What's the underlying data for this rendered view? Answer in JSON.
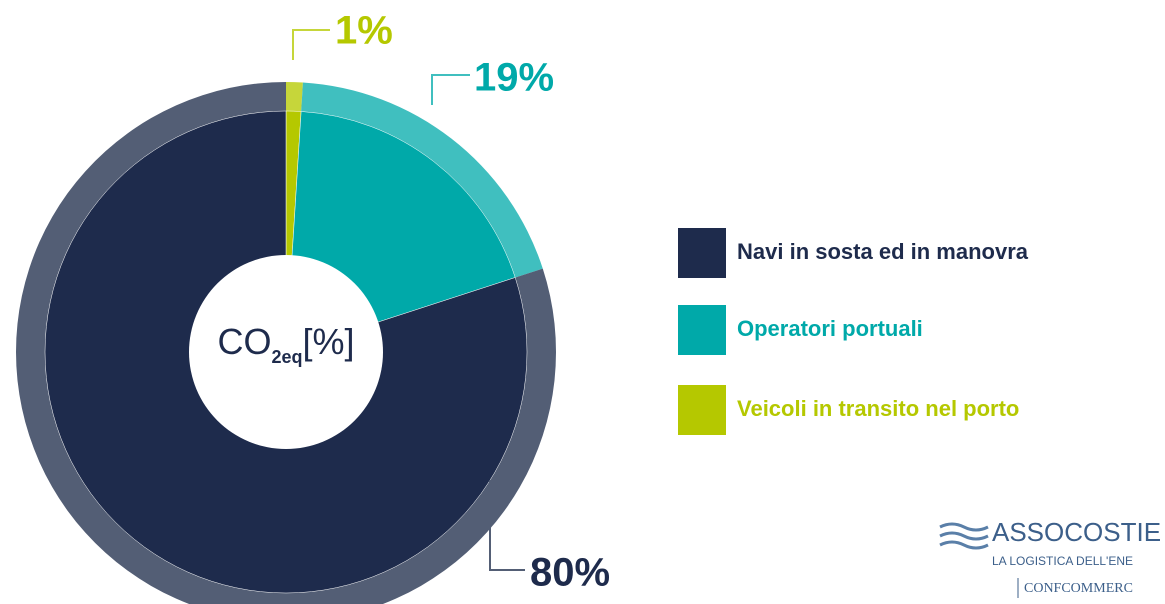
{
  "chart_data": {
    "type": "pie",
    "center_label": {
      "main": "CO",
      "sub": "2eq",
      "suffix": "[%]"
    },
    "categories": [
      "Navi in sosta ed in manovra",
      "Operatori portuali",
      "Veicoli in transito nel porto"
    ],
    "values": [
      80,
      19,
      1
    ],
    "value_labels": [
      "80%",
      "19%",
      "1%"
    ],
    "colors": [
      "#1e2b4c",
      "#00a9a9",
      "#b5c800"
    ],
    "ring_colors": [
      "#535e75",
      "#40bfbf",
      "#c6d63a"
    ],
    "legend": "right"
  },
  "logo": {
    "name": "ASSOCOSTIE",
    "tagline": "LA LOGISTICA DELL'ENE",
    "partner": "CONFCOMMERC"
  }
}
